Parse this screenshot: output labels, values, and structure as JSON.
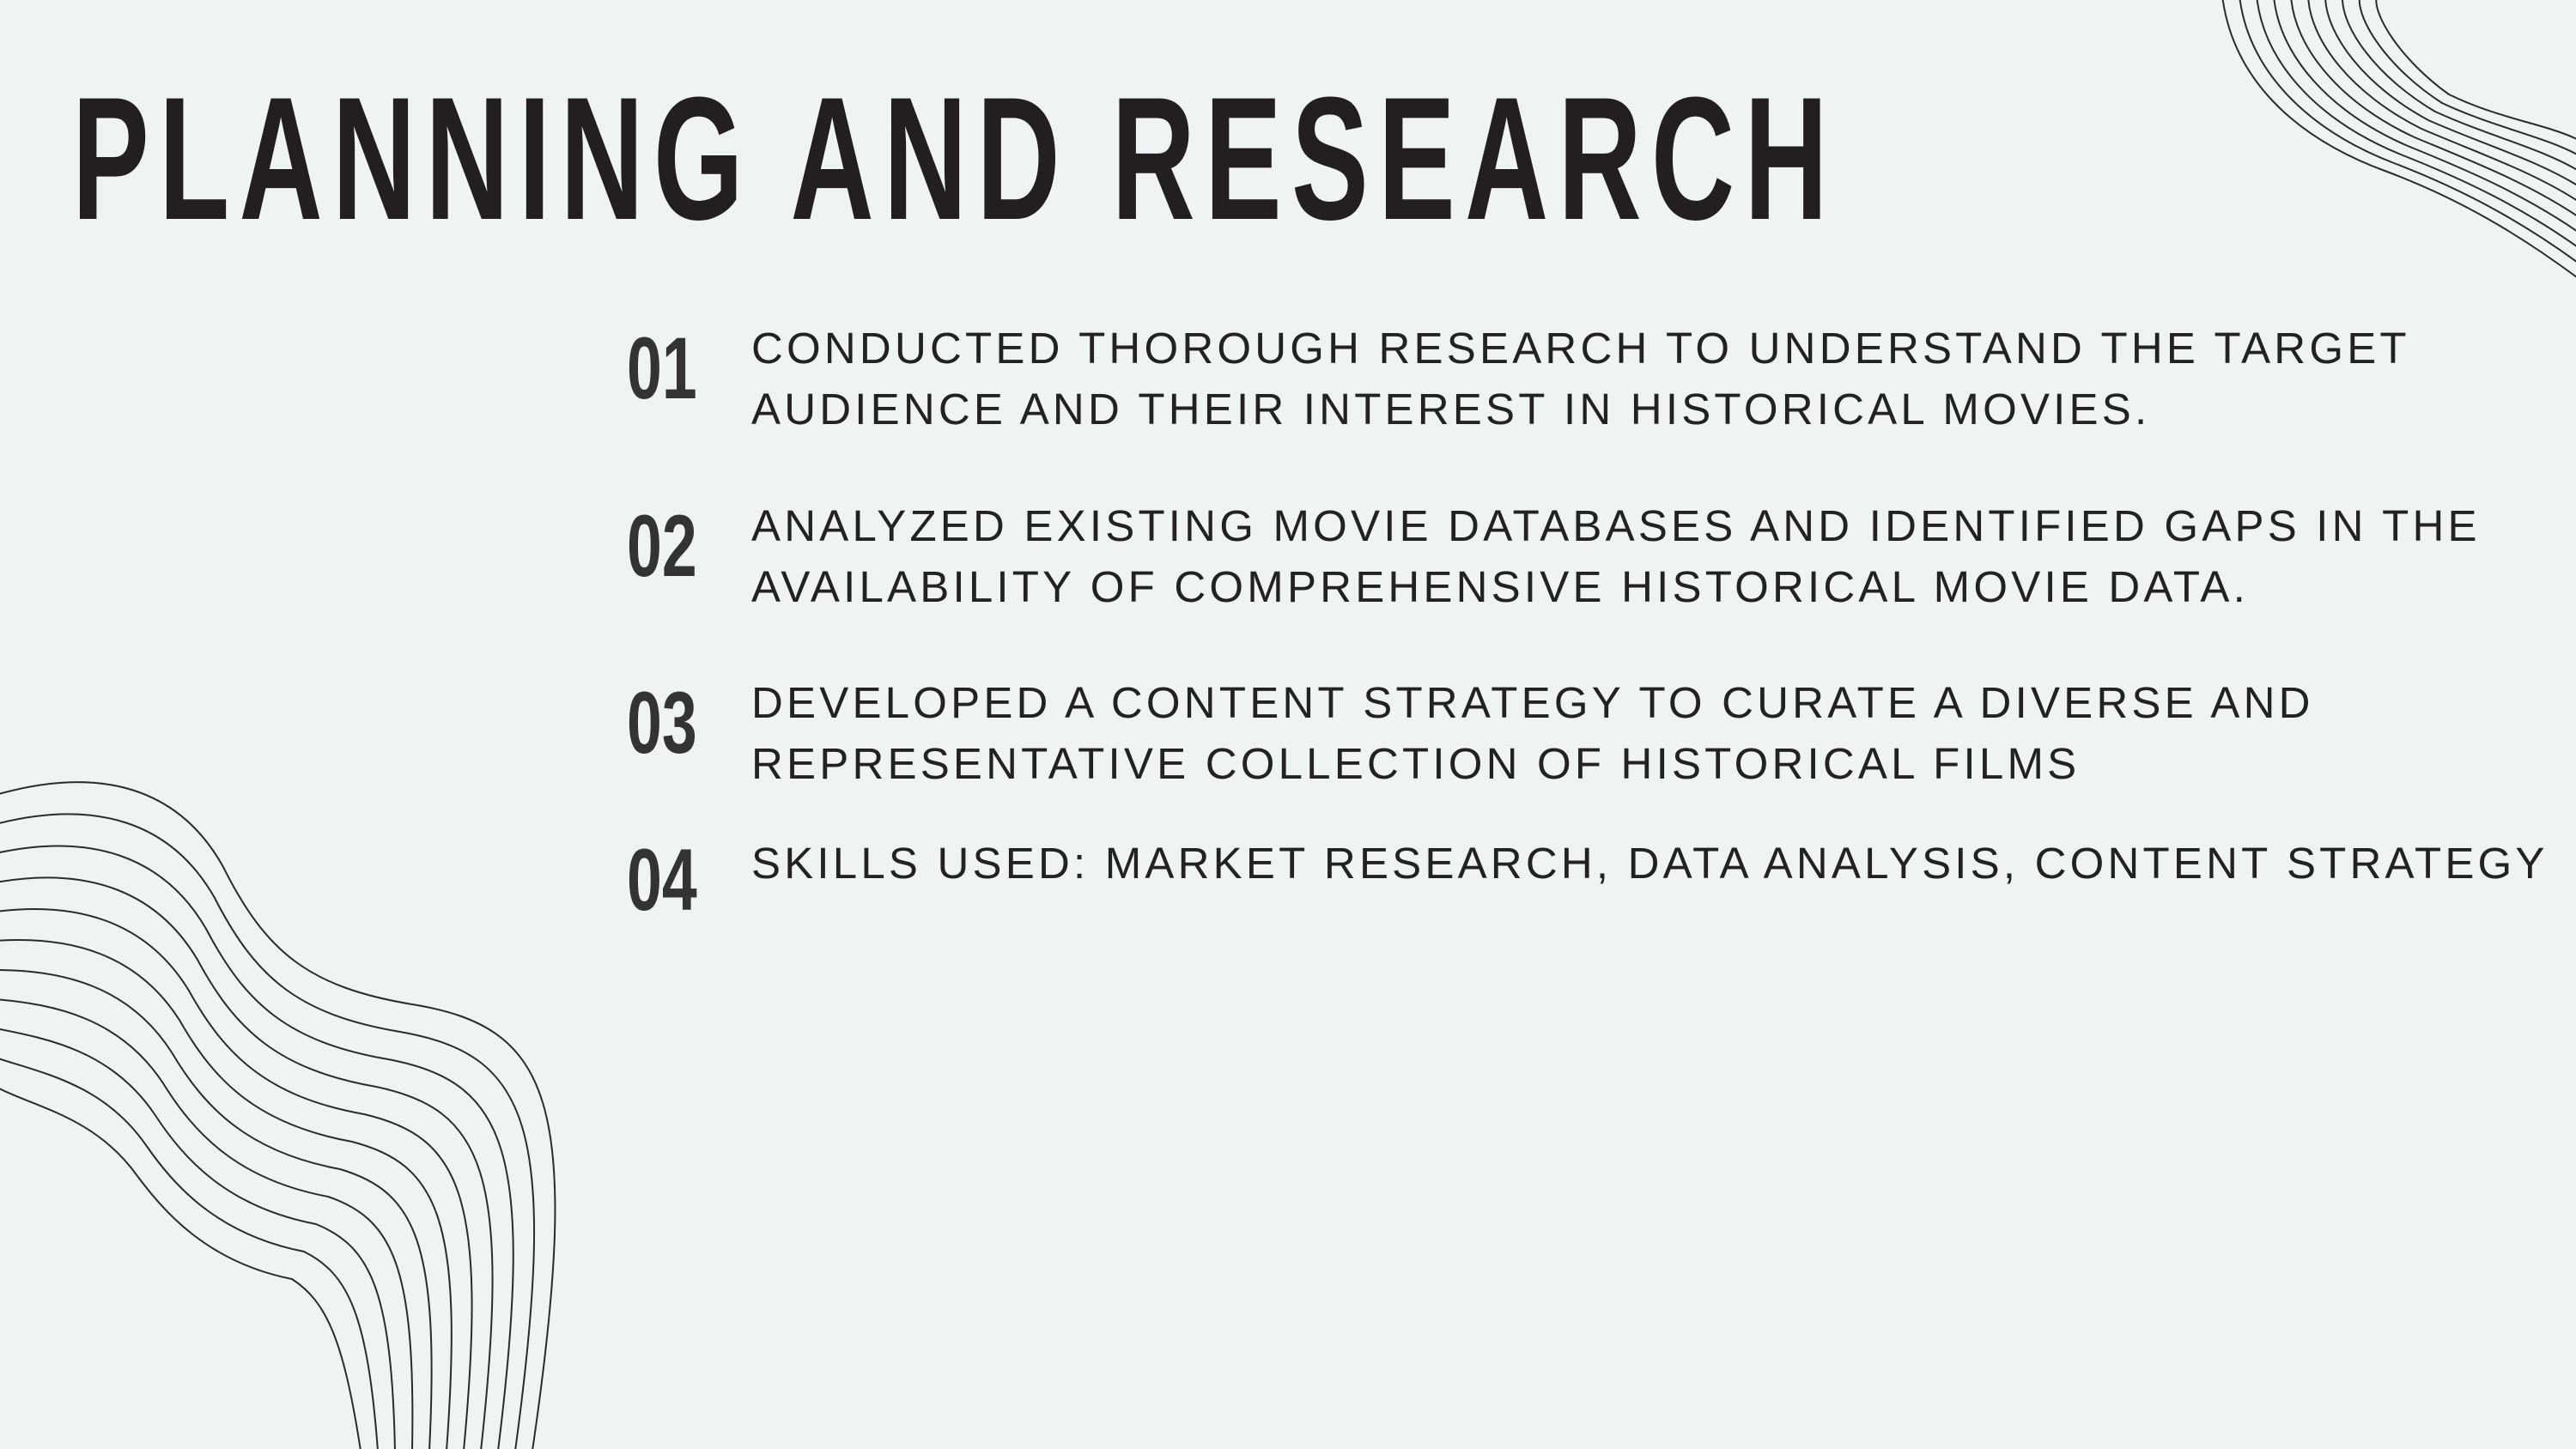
{
  "slide": {
    "title": "PLANNING AND RESEARCH",
    "items": [
      {
        "number": "01",
        "lines": [
          "CONDUCTED THOROUGH RESEARCH TO UNDERSTAND THE TARGET",
          "AUDIENCE AND THEIR INTEREST IN HISTORICAL MOVIES."
        ]
      },
      {
        "number": "02",
        "lines": [
          "ANALYZED EXISTING MOVIE DATABASES AND IDENTIFIED GAPS IN THE",
          "AVAILABILITY OF COMPREHENSIVE HISTORICAL MOVIE DATA."
        ]
      },
      {
        "number": "03",
        "lines": [
          "DEVELOPED A CONTENT STRATEGY TO CURATE A DIVERSE AND",
          "REPRESENTATIVE COLLECTION OF HISTORICAL FILMS"
        ]
      },
      {
        "number": "04",
        "lines": [
          "SKILLS USED: MARKET RESEARCH, DATA ANALYSIS, CONTENT STRATEGY"
        ]
      }
    ]
  },
  "colors": {
    "background": "#eff3f4",
    "title": "#231f20",
    "number": "#333333",
    "body_text": "#222222",
    "line_art": "#2b2b2b"
  },
  "decorations": [
    {
      "name": "wavy-lines-top-right"
    },
    {
      "name": "wavy-lines-bottom-left"
    }
  ]
}
